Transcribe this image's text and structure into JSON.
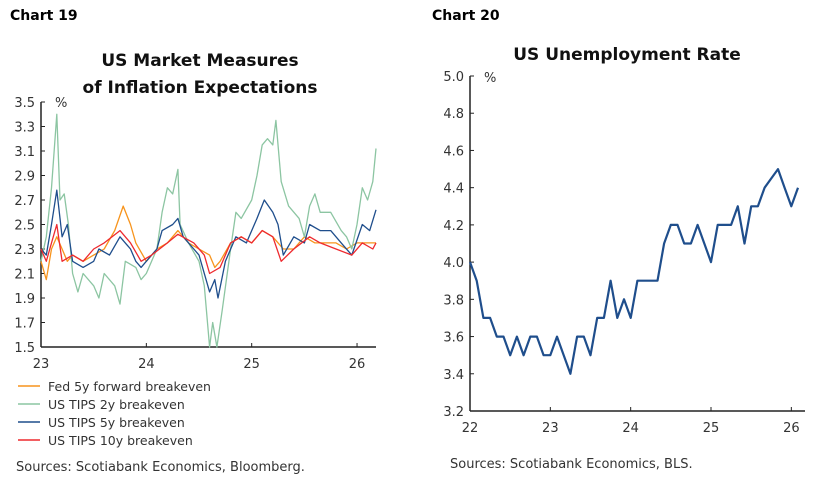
{
  "chart_data": [
    {
      "label": "Chart 19",
      "type": "line",
      "title": [
        "US Market Measures",
        "of Inflation Expectations"
      ],
      "ylabel": "%",
      "ylim": [
        1.5,
        3.5
      ],
      "yticks": [
        "1.5",
        "1.7",
        "1.9",
        "2.1",
        "2.3",
        "2.5",
        "2.7",
        "2.9",
        "3.1",
        "3.3",
        "3.5"
      ],
      "xlim": [
        23,
        26.18
      ],
      "xticks": [
        "23",
        "24",
        "25",
        "26"
      ],
      "legend_position": "bottom",
      "source": "Sources: Scotiabank Economics, Bloomberg.",
      "series": [
        {
          "name": "Fed 5y forward breakeven",
          "color": "#f7941d",
          "x": [
            23.0,
            23.05,
            23.1,
            23.15,
            23.2,
            23.25,
            23.3,
            23.4,
            23.5,
            23.6,
            23.7,
            23.78,
            23.85,
            23.9,
            24.0,
            24.1,
            24.2,
            24.3,
            24.4,
            24.5,
            24.6,
            24.65,
            24.7,
            24.8,
            24.9,
            25.0,
            25.1,
            25.2,
            25.3,
            25.4,
            25.5,
            25.6,
            25.7,
            25.8,
            25.9,
            26.0,
            26.1,
            26.18
          ],
          "y": [
            2.2,
            2.05,
            2.3,
            2.4,
            2.3,
            2.2,
            2.25,
            2.2,
            2.25,
            2.3,
            2.45,
            2.65,
            2.5,
            2.35,
            2.2,
            2.3,
            2.35,
            2.45,
            2.35,
            2.3,
            2.25,
            2.15,
            2.2,
            2.35,
            2.4,
            2.35,
            2.45,
            2.4,
            2.3,
            2.3,
            2.4,
            2.35,
            2.35,
            2.35,
            2.3,
            2.35,
            2.35,
            2.35
          ]
        },
        {
          "name": "US TIPS 2y breakeven",
          "color": "#8cc5a2",
          "x": [
            23.0,
            23.05,
            23.1,
            23.15,
            23.18,
            23.22,
            23.26,
            23.3,
            23.35,
            23.4,
            23.5,
            23.55,
            23.6,
            23.7,
            23.75,
            23.8,
            23.9,
            23.95,
            24.0,
            24.1,
            24.15,
            24.2,
            24.25,
            24.3,
            24.32,
            24.4,
            24.5,
            24.55,
            24.6,
            24.63,
            24.67,
            24.72,
            24.8,
            24.85,
            24.9,
            25.0,
            25.05,
            25.1,
            25.15,
            25.2,
            25.23,
            25.28,
            25.35,
            25.45,
            25.5,
            25.55,
            25.6,
            25.65,
            25.75,
            25.85,
            25.9,
            25.95,
            26.0,
            26.05,
            26.1,
            26.15,
            26.18
          ],
          "y": [
            2.2,
            2.4,
            2.8,
            3.4,
            2.7,
            2.75,
            2.5,
            2.1,
            1.95,
            2.1,
            2.0,
            1.9,
            2.1,
            2.0,
            1.85,
            2.2,
            2.15,
            2.05,
            2.1,
            2.3,
            2.6,
            2.8,
            2.75,
            2.95,
            2.5,
            2.35,
            2.2,
            2.0,
            1.5,
            1.7,
            1.5,
            1.8,
            2.3,
            2.6,
            2.55,
            2.7,
            2.9,
            3.15,
            3.2,
            3.15,
            3.35,
            2.85,
            2.65,
            2.55,
            2.4,
            2.65,
            2.75,
            2.6,
            2.6,
            2.45,
            2.4,
            2.3,
            2.5,
            2.8,
            2.7,
            2.85,
            3.12
          ]
        },
        {
          "name": "US TIPS 5y breakeven",
          "color": "#1f4e8c",
          "x": [
            23.0,
            23.05,
            23.1,
            23.15,
            23.2,
            23.25,
            23.3,
            23.4,
            23.5,
            23.55,
            23.65,
            23.75,
            23.85,
            23.9,
            23.95,
            24.0,
            24.1,
            24.15,
            24.25,
            24.3,
            24.35,
            24.45,
            24.5,
            24.6,
            24.65,
            24.68,
            24.75,
            24.85,
            24.95,
            25.05,
            25.12,
            25.2,
            25.25,
            25.3,
            25.4,
            25.5,
            25.55,
            25.65,
            25.75,
            25.85,
            25.95,
            26.05,
            26.12,
            26.18
          ],
          "y": [
            2.3,
            2.25,
            2.5,
            2.78,
            2.4,
            2.5,
            2.2,
            2.15,
            2.2,
            2.3,
            2.25,
            2.4,
            2.3,
            2.2,
            2.15,
            2.2,
            2.3,
            2.45,
            2.5,
            2.55,
            2.4,
            2.3,
            2.25,
            1.95,
            2.05,
            1.9,
            2.2,
            2.4,
            2.35,
            2.55,
            2.7,
            2.6,
            2.5,
            2.25,
            2.4,
            2.35,
            2.5,
            2.45,
            2.45,
            2.35,
            2.25,
            2.5,
            2.45,
            2.62
          ]
        },
        {
          "name": "US TIPS 10y breakeven",
          "color": "#ee2a2f",
          "x": [
            23.0,
            23.05,
            23.1,
            23.15,
            23.2,
            23.3,
            23.4,
            23.5,
            23.6,
            23.75,
            23.85,
            23.95,
            24.05,
            24.2,
            24.3,
            24.45,
            24.55,
            24.6,
            24.7,
            24.8,
            24.9,
            25.0,
            25.1,
            25.2,
            25.28,
            25.4,
            25.55,
            25.65,
            25.8,
            25.95,
            26.05,
            26.15,
            26.18
          ],
          "y": [
            2.3,
            2.2,
            2.35,
            2.5,
            2.2,
            2.25,
            2.2,
            2.3,
            2.35,
            2.45,
            2.35,
            2.2,
            2.25,
            2.35,
            2.42,
            2.35,
            2.25,
            2.1,
            2.15,
            2.35,
            2.4,
            2.35,
            2.45,
            2.4,
            2.2,
            2.3,
            2.4,
            2.35,
            2.3,
            2.25,
            2.35,
            2.3,
            2.35
          ]
        }
      ]
    },
    {
      "label": "Chart 20",
      "type": "line",
      "title": [
        "US Unemployment Rate"
      ],
      "ylabel": "%",
      "ylim": [
        3.2,
        5.0
      ],
      "yticks": [
        "3.2",
        "3.4",
        "3.6",
        "3.8",
        "4.0",
        "4.2",
        "4.4",
        "4.6",
        "4.8",
        "5.0"
      ],
      "xlim": [
        22,
        26.17
      ],
      "xticks": [
        "22",
        "23",
        "24",
        "25",
        "26"
      ],
      "source": "Sources: Scotiabank Economics, BLS.",
      "series": [
        {
          "name": "US Unemployment Rate",
          "color": "#1f4e8c",
          "start": 22,
          "step_months": 1,
          "values": [
            4.0,
            3.9,
            3.7,
            3.7,
            3.6,
            3.6,
            3.5,
            3.6,
            3.5,
            3.6,
            3.6,
            3.5,
            3.5,
            3.6,
            3.5,
            3.4,
            3.6,
            3.6,
            3.5,
            3.7,
            3.7,
            3.9,
            3.7,
            3.8,
            3.7,
            3.9,
            3.9,
            3.9,
            3.9,
            4.1,
            4.2,
            4.2,
            4.1,
            4.1,
            4.2,
            4.1,
            4.0,
            4.2,
            4.2,
            4.2,
            4.3,
            4.1,
            4.3,
            4.3,
            4.4,
            4.45,
            4.5,
            4.4,
            4.3,
            4.4
          ]
        }
      ]
    }
  ]
}
